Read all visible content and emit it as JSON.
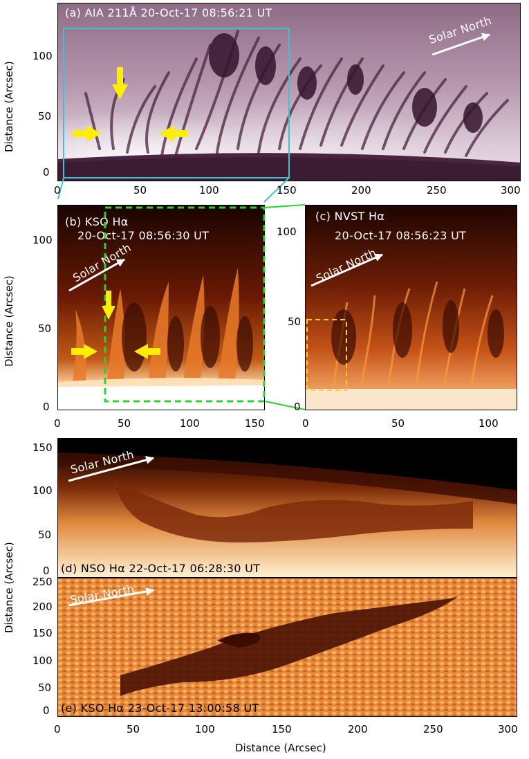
{
  "panels": {
    "a": {
      "label": "(a) AIA 211Å 20-Oct-17 08:56:21 UT",
      "direction": "Solar North",
      "x_ticks": [
        "0",
        "50",
        "100",
        "150",
        "200",
        "250",
        "300"
      ],
      "y_ticks": [
        "0",
        "50",
        "100"
      ],
      "y_title": "Distance (Arcsec)",
      "colors": {
        "sky": "#c0a3b8",
        "dark": "#4a2440",
        "limb": "#3c1c33"
      }
    },
    "b": {
      "label": "(b) KSO Hα",
      "time": "20-Oct-17 08:56:30 UT",
      "direction": "Solar North",
      "x_ticks": [
        "0",
        "50",
        "100",
        "150"
      ],
      "y_ticks": [
        "0",
        "50",
        "100"
      ],
      "y_title": "Distance (Arcsec)"
    },
    "c": {
      "label": "(c) NVST Hα",
      "time": "20-Oct-17 08:56:23 UT",
      "direction": "Solar North",
      "x_ticks": [
        "0",
        "50",
        "100"
      ],
      "y_ticks": [
        "0",
        "50",
        "100"
      ]
    },
    "d": {
      "label": "(d) NSO Hα 22-Oct-17 06:28:30 UT",
      "direction": "Solar North",
      "y_ticks": [
        "0",
        "50",
        "100",
        "150"
      ],
      "y_title": "Distance (Arcsec)"
    },
    "e": {
      "label": "(e) KSO Hα 23-Oct-17 13:00:58 UT",
      "direction": "Solar North",
      "x_ticks": [
        "0",
        "50",
        "100",
        "150",
        "200",
        "250",
        "300"
      ],
      "y_ticks": [
        "0",
        "50",
        "100",
        "150",
        "200",
        "250"
      ],
      "x_title": "Distance (Arcsec)"
    }
  },
  "colors": {
    "box_cyan": "#3fc2d0",
    "box_green": "#2bd22b",
    "box_yellow": "#ffd21e",
    "arrow_yellow": "#ffee00"
  }
}
